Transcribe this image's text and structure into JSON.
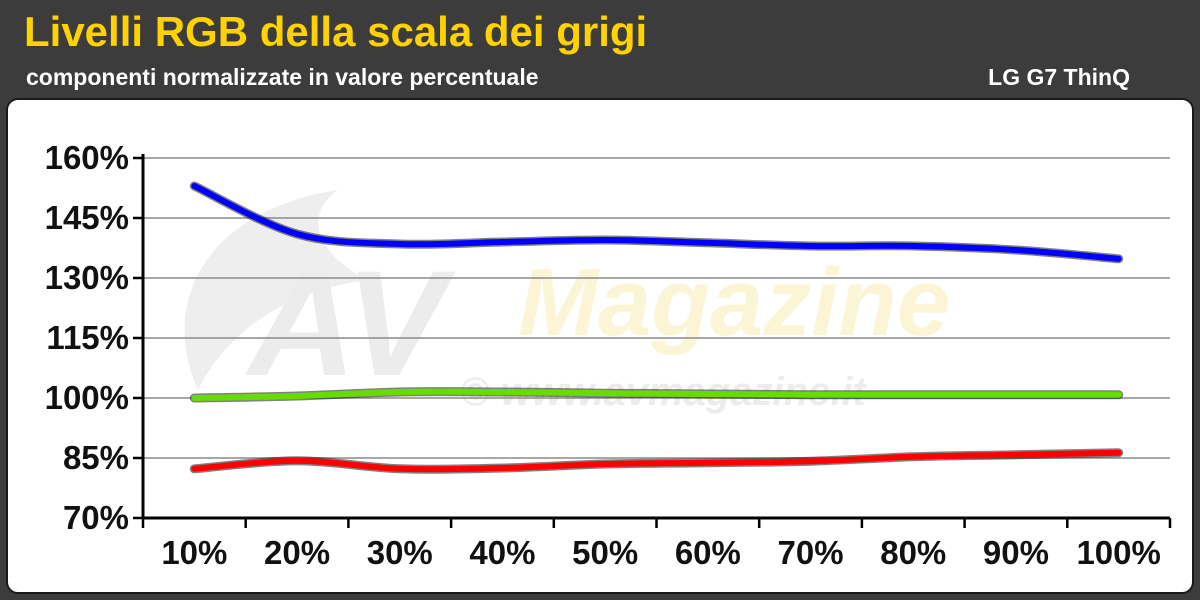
{
  "header": {
    "title": "Livelli RGB della scala dei grigi",
    "subtitle": "componenti normalizzate in valore percentuale",
    "device": "LG G7 ThinQ"
  },
  "watermark": {
    "brand_initials": "AV",
    "brand_name": "Magazine",
    "url": "© www.avmagazine.it"
  },
  "chart_data": {
    "type": "line",
    "title": "Livelli RGB della scala dei grigi",
    "subtitle": "componenti normalizzate in valore percentuale",
    "categories": [
      "10%",
      "20%",
      "30%",
      "40%",
      "50%",
      "60%",
      "70%",
      "80%",
      "90%",
      "100%"
    ],
    "y_ticks": [
      "70%",
      "85%",
      "100%",
      "115%",
      "130%",
      "145%",
      "160%"
    ],
    "ylim": [
      70,
      160
    ],
    "y_unit": "%",
    "grid": true,
    "series": [
      {
        "color": "#0000ff",
        "values": [
          153,
          141,
          138.5,
          139,
          139.5,
          138.8,
          138,
          138,
          137,
          134.8
        ]
      },
      {
        "color": "#66dd00",
        "values": [
          100,
          100.5,
          101.5,
          101.5,
          101.2,
          101,
          100.8,
          100.8,
          100.8,
          100.8
        ]
      },
      {
        "color": "#ff0000",
        "values": [
          82.3,
          84.3,
          82.3,
          82.5,
          83.5,
          83.8,
          84.2,
          85.3,
          85.8,
          86.3
        ]
      }
    ]
  }
}
